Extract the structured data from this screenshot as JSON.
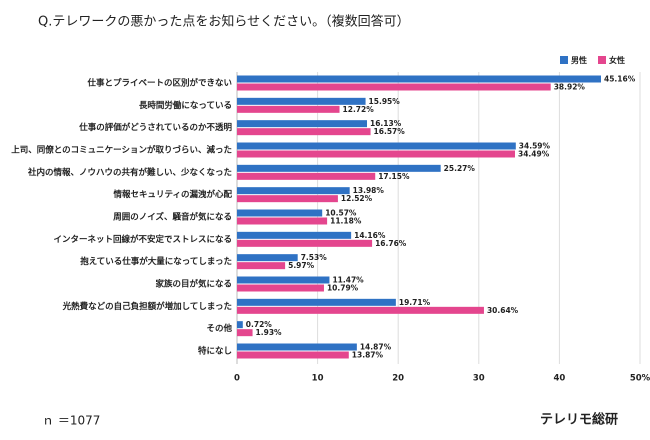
{
  "chart_data": {
    "type": "hbar",
    "title": "Q.テレワークの悪かった点をお知らせください。（複数回答可）",
    "note": "ｎ ＝1077",
    "brand": "テレリモ総研",
    "categories": [
      "仕事とプライベートの区別ができない",
      "長時間労働になっている",
      "仕事の評価がどうされているのか不透明",
      "上司、同僚とのコミュニケーションが取りづらい、減った",
      "社内の情報、ノウハウの共有が難しい、少なくなった",
      "情報セキュリティの漏洩が心配",
      "周囲のノイズ、騒音が気になる",
      "インターネット回線が不安定でストレスになる",
      "抱えている仕事が大量になってしまった",
      "家族の目が気になる",
      "光熱費などの自己負担額が増加してしまった",
      "その他",
      "特になし"
    ],
    "series": [
      {
        "name": "男性",
        "color": "#2f72c4",
        "values": [
          45.16,
          15.95,
          16.13,
          34.59,
          25.27,
          13.98,
          10.57,
          14.16,
          7.53,
          11.47,
          19.71,
          0.72,
          14.87
        ],
        "value_labels": [
          "45.16%",
          "15.95%",
          "16.13%",
          "34.59%",
          "25.27%",
          "13.98%",
          "10.57%",
          "14.16%",
          "7.53%",
          "11.47%",
          "19.71%",
          "0.72%",
          "14.87%"
        ]
      },
      {
        "name": "女性",
        "color": "#e4468e",
        "values": [
          38.92,
          12.72,
          16.57,
          34.49,
          17.15,
          12.52,
          11.18,
          16.76,
          5.97,
          10.79,
          30.64,
          1.93,
          13.87
        ],
        "value_labels": [
          "38.92%",
          "12.72%",
          "16.57%",
          "34.49%",
          "17.15%",
          "12.52%",
          "11.18%",
          "16.76%",
          "5.97%",
          "10.79%",
          "30.64%",
          "1.93%",
          "13.87%"
        ]
      }
    ],
    "xlim": [
      0,
      50
    ],
    "xticks": [
      0,
      10,
      20,
      30,
      40,
      {
        "value": 50,
        "label": "50%"
      }
    ],
    "grid": true,
    "legend": "top-right"
  }
}
